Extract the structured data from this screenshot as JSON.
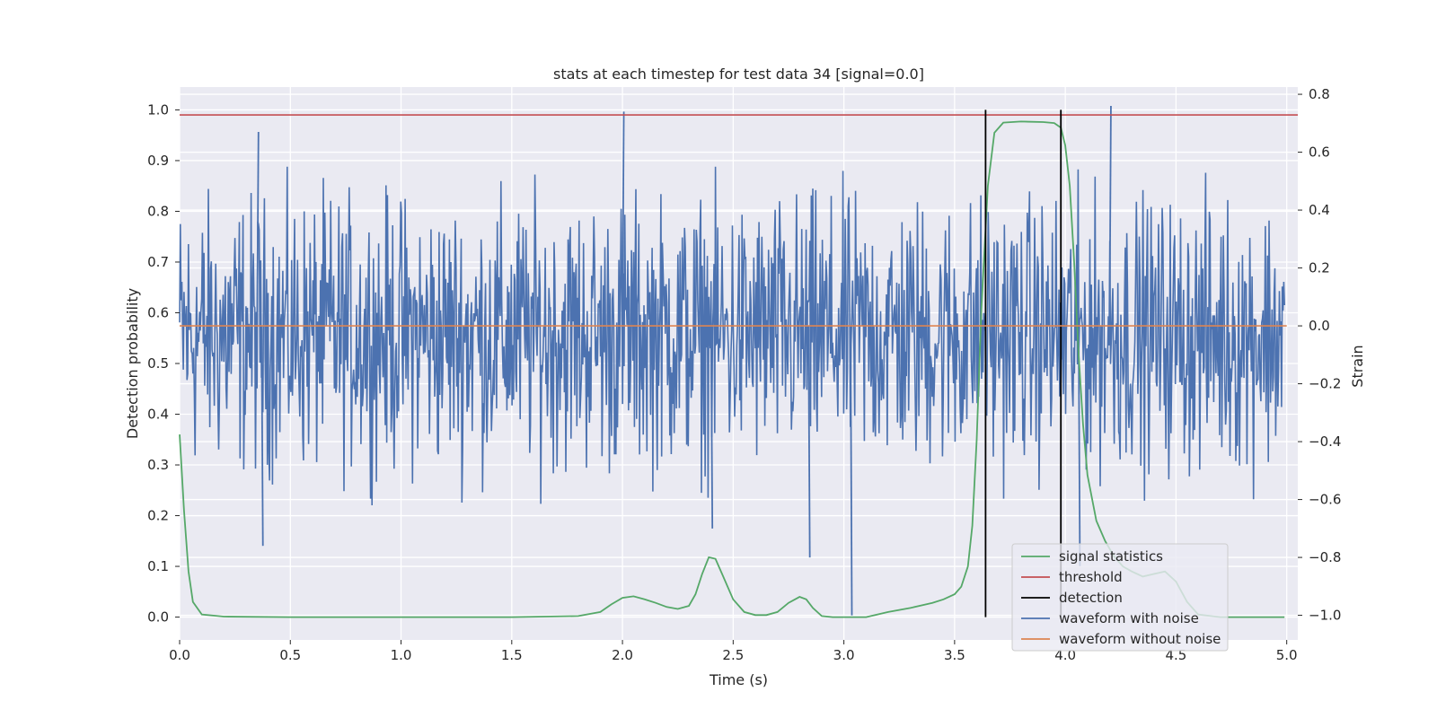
{
  "chart_data": {
    "type": "line",
    "title": "stats at each timestep for test data 34 [signal=0.0]",
    "xlabel": "Time (s)",
    "ylabel": "Detection probability",
    "y2label": "Strain",
    "xlim": [
      0.0,
      5.05
    ],
    "ylim": [
      -0.045,
      1.045
    ],
    "y2lim": [
      -1.085,
      0.825
    ],
    "xticks": [
      0.0,
      0.5,
      1.0,
      1.5,
      2.0,
      2.5,
      3.0,
      3.5,
      4.0,
      4.5,
      5.0
    ],
    "xtick_labels": [
      "0.0",
      "0.5",
      "1.0",
      "1.5",
      "2.0",
      "2.5",
      "3.0",
      "3.5",
      "4.0",
      "4.5",
      "5.0"
    ],
    "yticks": [
      0.0,
      0.1,
      0.2,
      0.3,
      0.4,
      0.5,
      0.6,
      0.7,
      0.8,
      0.9,
      1.0
    ],
    "ytick_labels": [
      "0.0",
      "0.1",
      "0.2",
      "0.3",
      "0.4",
      "0.5",
      "0.6",
      "0.7",
      "0.8",
      "0.9",
      "1.0"
    ],
    "y2ticks": [
      0.8,
      0.6,
      0.4,
      0.2,
      0.0,
      -0.2,
      -0.4,
      -0.6,
      -0.8,
      -1.0
    ],
    "y2tick_labels": [
      "0.8",
      "0.6",
      "0.4",
      "0.2",
      "0.0",
      "−0.2",
      "−0.4",
      "−0.6",
      "−0.8",
      "−1.0"
    ],
    "grid": true,
    "legend_position": "bottom-right",
    "series": [
      {
        "name": "signal statistics",
        "axis": "left",
        "color": "#55a868",
        "x": [
          0.0,
          0.02,
          0.04,
          0.06,
          0.1,
          0.2,
          0.5,
          1.0,
          1.5,
          1.8,
          1.9,
          1.95,
          2.0,
          2.05,
          2.1,
          2.15,
          2.2,
          2.25,
          2.3,
          2.33,
          2.36,
          2.39,
          2.42,
          2.45,
          2.5,
          2.55,
          2.6,
          2.65,
          2.7,
          2.75,
          2.8,
          2.83,
          2.86,
          2.9,
          2.95,
          3.0,
          3.1,
          3.15,
          3.2,
          3.3,
          3.4,
          3.45,
          3.5,
          3.53,
          3.56,
          3.58,
          3.6,
          3.62,
          3.65,
          3.68,
          3.72,
          3.8,
          3.9,
          3.95,
          3.98,
          4.0,
          4.02,
          4.04,
          4.06,
          4.08,
          4.1,
          4.14,
          4.18,
          4.22,
          4.26,
          4.3,
          4.35,
          4.4,
          4.45,
          4.5,
          4.55,
          4.6,
          4.7,
          4.8,
          4.99
        ],
        "values": [
          0.36,
          0.21,
          0.09,
          0.03,
          0.005,
          0.001,
          0.0,
          0.0,
          0.0,
          0.002,
          0.01,
          0.025,
          0.038,
          0.041,
          0.035,
          0.028,
          0.02,
          0.016,
          0.022,
          0.045,
          0.085,
          0.118,
          0.115,
          0.085,
          0.035,
          0.01,
          0.004,
          0.004,
          0.01,
          0.028,
          0.04,
          0.035,
          0.018,
          0.002,
          0.0,
          0.0,
          0.0,
          0.005,
          0.01,
          0.018,
          0.028,
          0.035,
          0.045,
          0.06,
          0.1,
          0.18,
          0.35,
          0.6,
          0.85,
          0.955,
          0.975,
          0.977,
          0.976,
          0.974,
          0.965,
          0.93,
          0.85,
          0.7,
          0.52,
          0.38,
          0.28,
          0.19,
          0.15,
          0.12,
          0.1,
          0.09,
          0.08,
          0.085,
          0.09,
          0.07,
          0.03,
          0.005,
          0.0,
          0.0,
          0.0
        ]
      },
      {
        "name": "threshold",
        "axis": "left",
        "color": "#c44e52",
        "x": [
          0.0,
          5.05
        ],
        "values": [
          0.99,
          0.99
        ]
      },
      {
        "name": "detection",
        "axis": "left",
        "color": "#000000",
        "x": [
          3.64,
          3.98
        ],
        "values": [
          1.0,
          1.0
        ],
        "type": "vlines",
        "ymin": 0.0
      },
      {
        "name": "waveform with noise",
        "axis": "right",
        "color": "#4c72b0",
        "description": "dense noise trace, mostly within -0.4..0.3 strain",
        "envelope_min": -1.0,
        "envelope_max": 0.76,
        "notable_extremes": [
          {
            "x": 0.37,
            "y": -0.76
          },
          {
            "x": 0.35,
            "y": 0.67
          },
          {
            "x": 2.0,
            "y": 0.74
          },
          {
            "x": 2.4,
            "y": -0.7
          },
          {
            "x": 2.84,
            "y": -0.8
          },
          {
            "x": 3.03,
            "y": -1.0
          },
          {
            "x": 4.2,
            "y": 0.76
          },
          {
            "x": 4.06,
            "y": -0.83
          }
        ]
      },
      {
        "name": "waveform without noise",
        "axis": "right",
        "color": "#dd8452",
        "x": [
          0.0,
          5.0
        ],
        "values": [
          0.0,
          0.0
        ]
      }
    ],
    "legend": [
      {
        "label": "signal statistics",
        "color": "#55a868"
      },
      {
        "label": "threshold",
        "color": "#c44e52"
      },
      {
        "label": "detection",
        "color": "#000000"
      },
      {
        "label": "waveform with noise",
        "color": "#4c72b0"
      },
      {
        "label": "waveform without noise",
        "color": "#dd8452"
      }
    ]
  }
}
